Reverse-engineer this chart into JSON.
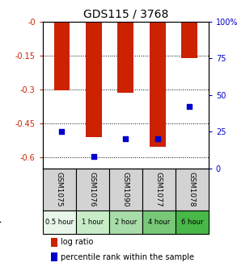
{
  "title": "GDS115 / 3768",
  "samples": [
    "GSM1075",
    "GSM1076",
    "GSM1090",
    "GSM1077",
    "GSM1078"
  ],
  "time_labels": [
    "0.5 hour",
    "1 hour",
    "2 hour",
    "4 hour",
    "6 hour"
  ],
  "time_colors": [
    "#e8f5e9",
    "#c8ecc8",
    "#a8dca8",
    "#78c878",
    "#48b848"
  ],
  "log_ratios": [
    -0.305,
    -0.51,
    -0.315,
    -0.555,
    -0.16
  ],
  "percentile_ranks": [
    25,
    8,
    20,
    20,
    42
  ],
  "bar_color": "#cc2200",
  "dot_color": "#0000cc",
  "ylim_left": [
    -0.65,
    0.0
  ],
  "ylim_right": [
    0,
    100
  ],
  "yticks_left": [
    0.0,
    -0.15,
    -0.3,
    -0.45,
    -0.6
  ],
  "ytick_left_labels": [
    "-0",
    "-0.15",
    "-0.3",
    "-0.45",
    "-0.6"
  ],
  "yticks_right": [
    0,
    25,
    50,
    75,
    100
  ],
  "ytick_right_labels": [
    "0",
    "25",
    "50",
    "75",
    "100%"
  ],
  "ylabel_left_color": "#cc2200",
  "ylabel_right_color": "#0000cc",
  "bg_plot": "#ffffff",
  "sample_label_bg": "#d3d3d3",
  "legend_lr": "log ratio",
  "legend_pr": "percentile rank within the sample"
}
